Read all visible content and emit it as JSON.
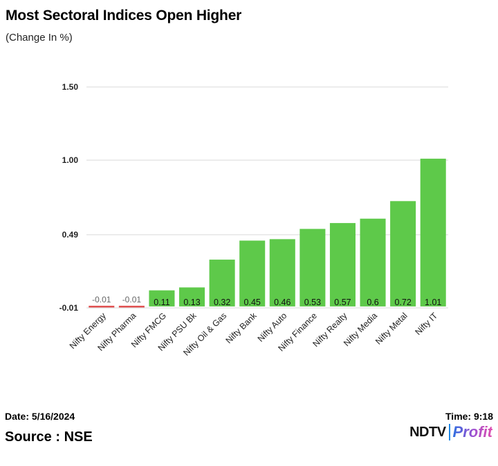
{
  "chart_data": {
    "type": "bar",
    "title": "Most Sectoral Indices Open Higher",
    "subtitle": "(Change In %)",
    "categories": [
      "Nifty Energy",
      "Nifty Pharma",
      "Nifty FMCG",
      "Nifty PSU Bk",
      "Nifty Oil & Gas",
      "Nifty Bank",
      "Nifty Auto",
      "Nifty Finance",
      "Nifty Realty",
      "Nifty Media",
      "Nifty Metal",
      "Nifty IT"
    ],
    "values": [
      -0.01,
      -0.01,
      0.11,
      0.13,
      0.32,
      0.45,
      0.46,
      0.53,
      0.57,
      0.6,
      0.72,
      1.01
    ],
    "value_labels": [
      "-0.01",
      "-0.01",
      "0.11",
      "0.13",
      "0.32",
      "0.45",
      "0.46",
      "0.53",
      "0.57",
      "0.6",
      "0.72",
      "1.01"
    ],
    "yticks": [
      -0.01,
      0.49,
      1.0,
      1.5
    ],
    "ytick_labels": [
      "-0.01",
      "0.49",
      "1.00",
      "1.50"
    ],
    "ylim": [
      -0.01,
      1.5
    ],
    "grid": true,
    "colors": {
      "positive": "#5ec94a",
      "negative": "#e05050",
      "grid": "#d8d8d8"
    }
  },
  "footer": {
    "date": "Date: 5/16/2024",
    "time": "Time: 9:18",
    "source": "Source : NSE"
  },
  "logo": {
    "brand": "NDTV",
    "sub": "Profit"
  }
}
